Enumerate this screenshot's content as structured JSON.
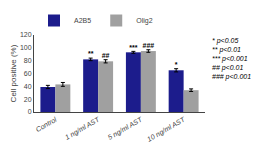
{
  "chart_data": {
    "type": "bar",
    "categories": [
      "Control",
      "1 ng/ml AST",
      "5 ng/ml AST",
      "10 ng/ml AST"
    ],
    "series": [
      {
        "name": "A2B5",
        "color": "#1c1c8c",
        "values": [
          39,
          82,
          93,
          65
        ],
        "errors": [
          2.5,
          2.0,
          1.5,
          2.5
        ],
        "annotations": [
          null,
          "**",
          "***",
          "*"
        ]
      },
      {
        "name": "Olig2",
        "color": "#a0a0a0",
        "values": [
          43,
          79,
          95,
          34
        ],
        "errors": [
          3.0,
          2.5,
          2.0,
          2.0
        ],
        "annotations": [
          null,
          "##",
          "###",
          null
        ]
      }
    ],
    "ylabel": "Cell positive (%)",
    "ylim": [
      0,
      120
    ],
    "yticks": [
      0,
      20,
      40,
      60,
      80,
      100,
      120
    ],
    "grid": false,
    "legend": "upper left",
    "notes": [
      "* p<0.05",
      "** p<0.01",
      "*** p<0.001",
      "## p<0.01",
      "### p<0.001"
    ]
  }
}
